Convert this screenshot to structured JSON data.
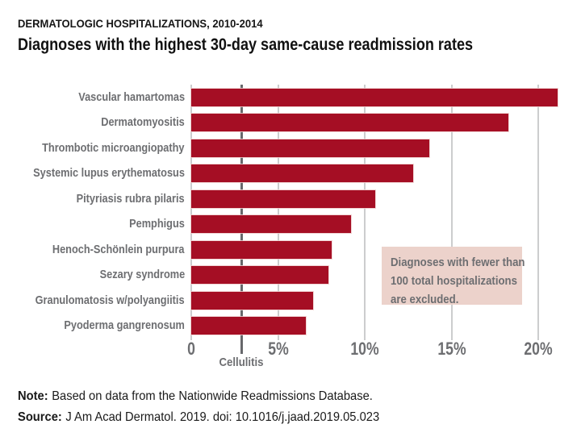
{
  "header": {
    "kicker": "DERMATOLOGIC HOSPITALIZATIONS, 2010-2014",
    "title": "Diagnoses with the highest 30-day same-cause readmission rates"
  },
  "chart_data": {
    "type": "bar",
    "orientation": "horizontal",
    "title": "Diagnoses with the highest 30-day same-cause readmission rates",
    "subtitle": "DERMATOLOGIC HOSPITALIZATIONS, 2010-2014",
    "unit": "%",
    "categories": [
      "Vascular hamartomas",
      "Dermatomyositis",
      "Thrombotic microangiopathy",
      "Systemic lupus erythematosus",
      "Pityriasis rubra pilaris",
      "Pemphigus",
      "Henoch-Schönlein purpura",
      "Sezary syndrome",
      "Granulomatosis w/polyangiitis",
      "Pyoderma gangrenosum"
    ],
    "values": [
      21.1,
      18.3,
      13.7,
      12.8,
      10.6,
      9.2,
      8.1,
      7.9,
      7.0,
      6.6
    ],
    "x_ticks": [
      {
        "value": 0,
        "label": "0"
      },
      {
        "value": 5,
        "label": "5%"
      },
      {
        "value": 10,
        "label": "10%"
      },
      {
        "value": 15,
        "label": "15%"
      },
      {
        "value": 20,
        "label": "20%"
      }
    ],
    "xlim": [
      0,
      21.7
    ],
    "grid": "vertical",
    "legend": "none",
    "reference_line": {
      "value": 2.9,
      "label": "Cellulitis"
    },
    "annotation": {
      "lines": [
        "Diagnoses with fewer than",
        "100 total hospitalizations",
        "are excluded."
      ]
    },
    "colors": {
      "bar": "#a50e24",
      "gridline": "#cccdce",
      "reference_line": "#67686b",
      "label_text": "#6d6e71",
      "annotation_bg": "#ecd2cb",
      "annotation_text": "#6d6e71"
    }
  },
  "footer": {
    "note_label": "Note:",
    "note_text": "Based on data from the Nationwide Readmissions Database.",
    "source_label": "Source:",
    "source_text": "J Am Acad Dermatol. 2019. doi: 10.1016/j.jaad.2019.05.023"
  }
}
